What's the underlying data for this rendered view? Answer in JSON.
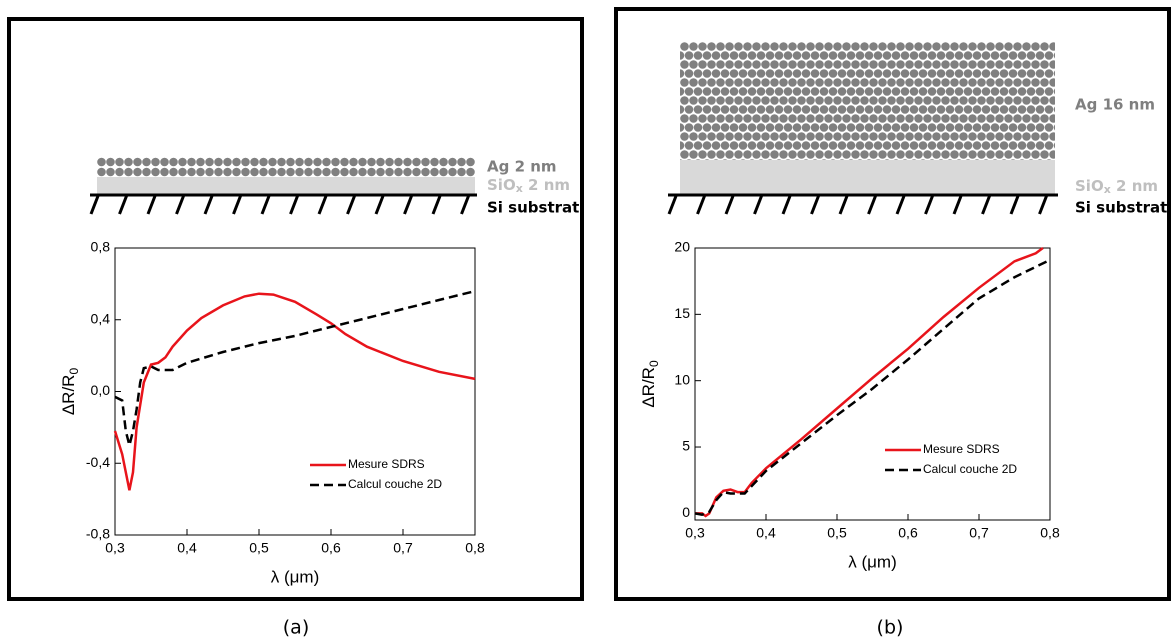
{
  "panels": [
    {
      "label": "(a)",
      "layers": {
        "ag": "Ag 2 nm",
        "siox": {
          "base": "SiO",
          "sub": "x",
          "rest": " 2 nm"
        },
        "si": "Si substrat"
      }
    },
    {
      "label": "(b)",
      "layers": {
        "ag": "Ag 16 nm",
        "siox": {
          "base": "SiO",
          "sub": "x",
          "rest": " 2 nm"
        },
        "si": "Si substrat"
      }
    }
  ],
  "chart_data": [
    {
      "type": "line",
      "xlabel": "λ (μm)",
      "ylabel": {
        "text": "ΔR/R",
        "sub": "0"
      },
      "xlim": [
        0.3,
        0.8
      ],
      "ylim": [
        -0.8,
        0.8
      ],
      "xticks": [
        {
          "value": 0.3,
          "label": "0,3"
        },
        {
          "value": 0.4,
          "label": "0,4"
        },
        {
          "value": 0.5,
          "label": "0,5"
        },
        {
          "value": 0.6,
          "label": "0,6"
        },
        {
          "value": 0.7,
          "label": "0,7"
        },
        {
          "value": 0.8,
          "label": "0,8"
        }
      ],
      "yticks": [
        {
          "value": -0.8,
          "label": "-0,8"
        },
        {
          "value": -0.4,
          "label": "-0,4"
        },
        {
          "value": 0,
          "label": "0,0"
        },
        {
          "value": 0.4,
          "label": "0,4"
        },
        {
          "value": 0.8,
          "label": "0,8"
        }
      ],
      "legend": "lower right",
      "series": [
        {
          "name": "Mesure SDRS",
          "color": "#e8141b",
          "dash": false,
          "x": [
            0.3,
            0.31,
            0.32,
            0.325,
            0.33,
            0.34,
            0.35,
            0.36,
            0.37,
            0.38,
            0.4,
            0.42,
            0.45,
            0.48,
            0.5,
            0.52,
            0.55,
            0.58,
            0.6,
            0.62,
            0.65,
            0.7,
            0.75,
            0.8
          ],
          "values": [
            -0.22,
            -0.35,
            -0.55,
            -0.45,
            -0.2,
            0.05,
            0.15,
            0.16,
            0.19,
            0.25,
            0.34,
            0.41,
            0.48,
            0.53,
            0.545,
            0.54,
            0.5,
            0.43,
            0.38,
            0.32,
            0.25,
            0.17,
            0.11,
            0.07
          ]
        },
        {
          "name": "Calcul couche 2D",
          "color": "#000000",
          "dash": true,
          "x": [
            0.3,
            0.31,
            0.315,
            0.32,
            0.325,
            0.33,
            0.335,
            0.34,
            0.35,
            0.36,
            0.38,
            0.4,
            0.45,
            0.5,
            0.55,
            0.6,
            0.65,
            0.7,
            0.75,
            0.8
          ],
          "values": [
            -0.03,
            -0.05,
            -0.22,
            -0.3,
            -0.22,
            -0.1,
            0.05,
            0.13,
            0.14,
            0.12,
            0.12,
            0.16,
            0.22,
            0.27,
            0.31,
            0.36,
            0.41,
            0.46,
            0.51,
            0.56
          ]
        }
      ]
    },
    {
      "type": "line",
      "xlabel": "λ (μm)",
      "ylabel": {
        "text": "ΔR/R",
        "sub": "0"
      },
      "xlim": [
        0.3,
        0.8
      ],
      "ylim": [
        -0.5,
        20
      ],
      "xticks": [
        {
          "value": 0.3,
          "label": "0,3"
        },
        {
          "value": 0.4,
          "label": "0,4"
        },
        {
          "value": 0.5,
          "label": "0,5"
        },
        {
          "value": 0.6,
          "label": "0,6"
        },
        {
          "value": 0.7,
          "label": "0,7"
        },
        {
          "value": 0.8,
          "label": "0,8"
        }
      ],
      "yticks": [
        0,
        5,
        10,
        15,
        20
      ],
      "legend": "lower right",
      "series": [
        {
          "name": "Mesure SDRS",
          "color": "#e8141b",
          "dash": false,
          "x": [
            0.3,
            0.31,
            0.315,
            0.32,
            0.33,
            0.34,
            0.35,
            0.36,
            0.37,
            0.38,
            0.4,
            0.45,
            0.5,
            0.55,
            0.6,
            0.65,
            0.7,
            0.75,
            0.78,
            0.79
          ],
          "values": [
            0,
            0,
            -0.2,
            0,
            1.2,
            1.7,
            1.8,
            1.6,
            1.6,
            2.3,
            3.4,
            5.6,
            7.9,
            10.2,
            12.4,
            14.8,
            17,
            19,
            19.6,
            20
          ]
        },
        {
          "name": "Calcul couche 2D",
          "color": "#000000",
          "dash": true,
          "x": [
            0.3,
            0.31,
            0.32,
            0.33,
            0.34,
            0.35,
            0.37,
            0.4,
            0.45,
            0.5,
            0.55,
            0.6,
            0.65,
            0.7,
            0.75,
            0.8
          ],
          "values": [
            0,
            -0.1,
            0.1,
            1,
            1.6,
            1.5,
            1.5,
            3.2,
            5.3,
            7.4,
            9.4,
            11.6,
            13.9,
            16.2,
            17.8,
            19.1
          ]
        }
      ]
    }
  ]
}
